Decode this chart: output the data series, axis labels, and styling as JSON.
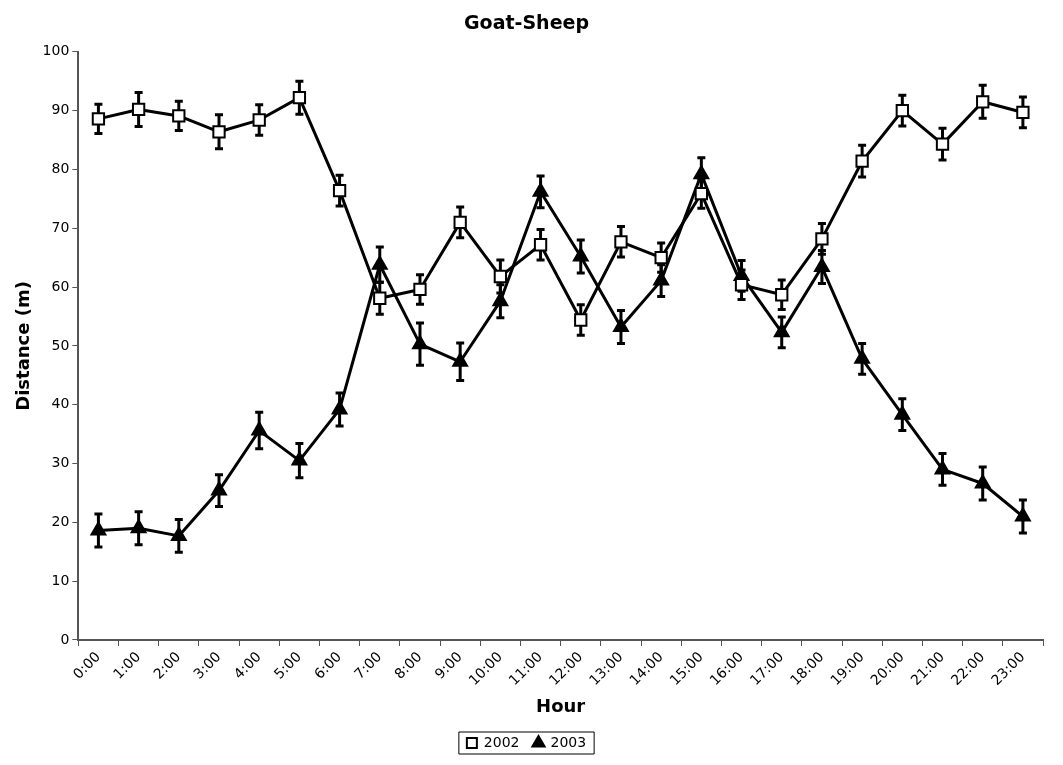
{
  "chart_data": {
    "type": "line",
    "title": "Goat-Sheep",
    "xlabel": "Hour",
    "ylabel": "Distance (m)",
    "categories": [
      "0:00",
      "1:00",
      "2:00",
      "3:00",
      "4:00",
      "5:00",
      "6:00",
      "7:00",
      "8:00",
      "9:00",
      "10:00",
      "11:00",
      "12:00",
      "13:00",
      "14:00",
      "15:00",
      "16:00",
      "17:00",
      "18:00",
      "19:00",
      "20:00",
      "21:00",
      "22:00",
      "23:00"
    ],
    "series": [
      {
        "name": "2002",
        "color": "#000000",
        "marker": "square",
        "values": [
          88.6,
          90.2,
          89.1,
          86.4,
          88.4,
          92.2,
          76.4,
          58.1,
          59.6,
          71.0,
          61.8,
          67.2,
          54.4,
          67.7,
          65.0,
          75.9,
          60.4,
          58.7,
          68.2,
          81.4,
          90.0,
          84.3,
          91.5,
          89.7
        ],
        "errors": [
          2.5,
          2.9,
          2.5,
          2.9,
          2.6,
          2.8,
          2.6,
          2.7,
          2.5,
          2.6,
          2.8,
          2.6,
          2.6,
          2.6,
          2.5,
          2.5,
          2.5,
          2.5,
          2.6,
          2.7,
          2.6,
          2.7,
          2.8,
          2.6
        ]
      },
      {
        "name": "2003",
        "color": "#000000",
        "marker": "triangle",
        "values": [
          18.6,
          19.0,
          17.7,
          25.4,
          35.6,
          30.5,
          39.2,
          63.8,
          50.3,
          47.3,
          57.6,
          76.2,
          65.2,
          53.2,
          61.1,
          79.2,
          61.9,
          52.3,
          63.4,
          47.8,
          38.3,
          29.0,
          26.6,
          21.0
        ],
        "errors": [
          2.8,
          2.8,
          2.8,
          2.7,
          3.1,
          2.9,
          2.8,
          3.0,
          3.6,
          3.2,
          2.8,
          2.7,
          2.8,
          2.8,
          2.7,
          2.8,
          2.6,
          2.6,
          2.8,
          2.6,
          2.7,
          2.7,
          2.8,
          2.8
        ]
      }
    ],
    "ylim": [
      0,
      100
    ],
    "yticks": [
      0,
      10,
      20,
      30,
      40,
      50,
      60,
      70,
      80,
      90,
      100
    ],
    "grid": false,
    "legend": "bottom",
    "line_style": "solid"
  }
}
